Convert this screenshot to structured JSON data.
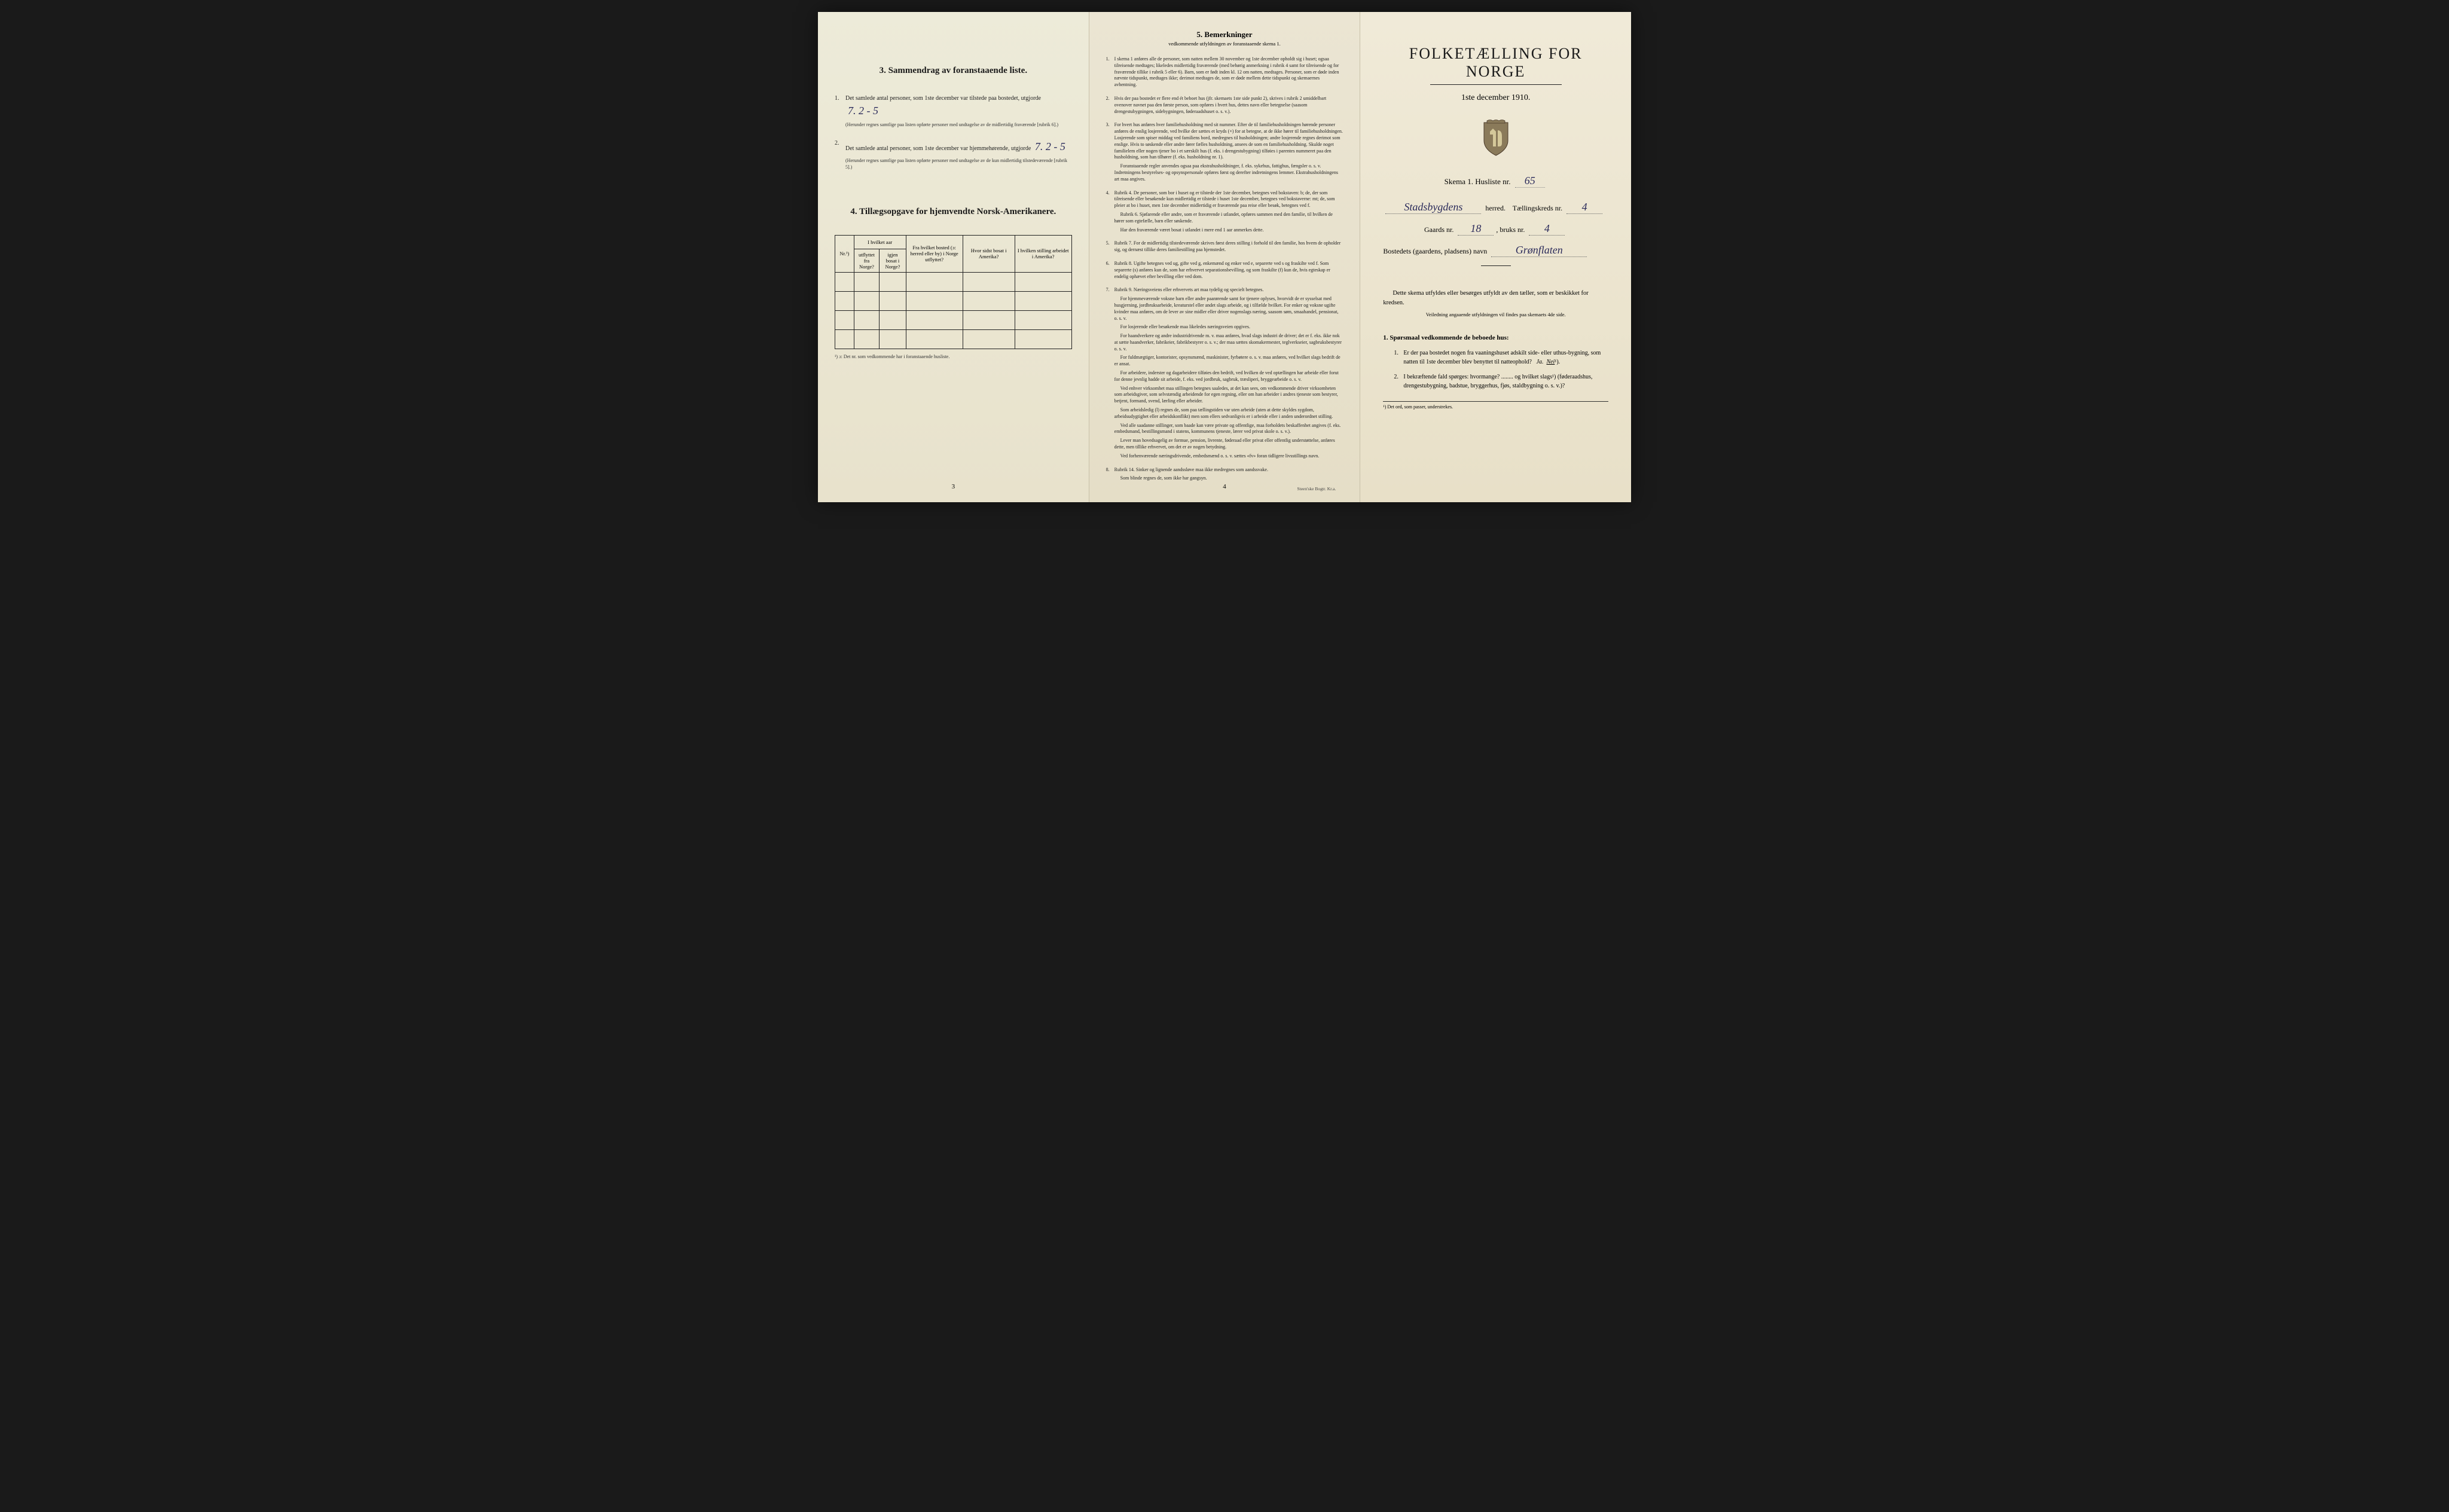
{
  "page3": {
    "section3": {
      "title": "3.  Sammendrag av foranstaaende liste.",
      "item1_num": "1.",
      "item1_text": "Det samlede antal personer, som 1ste december var tilstede paa bostedet, utgjorde",
      "item1_value": "7.  2 - 5",
      "item1_note": "(Herunder regnes samtlige paa listen opførte personer med undtagelse av de midlertidig fraværende [rubrik 6].)",
      "item2_num": "2.",
      "item2_text": "Det samlede antal personer, som 1ste december var hjemmehørende, utgjorde",
      "item2_value": "7.  2 - 5",
      "item2_note": "(Herunder regnes samtlige paa listen opførte personer med undtagelse av de kun midlertidig tilstedeværende [rubrik 5].)"
    },
    "section4": {
      "title": "4.  Tillægsopgave for hjemvendte Norsk-Amerikanere.",
      "col1": "Nr.¹)",
      "col2a": "I hvilket aar",
      "col2b_a": "utflyttet fra Norge?",
      "col2b_b": "igjen bosat i Norge?",
      "col3": "Fra hvilket bosted (ɔ: herred eller by) i Norge utflyttet?",
      "col4": "Hvor sidst bosat i Amerika?",
      "col5": "I hvilken stilling arbeidet i Amerika?",
      "footnote": "¹) ɔ: Det nr. som vedkommende har i foranstaaende husliste."
    },
    "pagenum": "3"
  },
  "page4": {
    "title": "5.  Bemerkninger",
    "subtitle": "vedkommende utfyldningen av foranstaaende skema 1.",
    "remarks": [
      {
        "n": "1.",
        "paras": [
          "I skema 1 anføres alle de personer, som natten mellem 30 november og 1ste december opholdt sig i huset; ogsaa tilreisende medtages; likeledes midlertidig fraværende (med behørig anmerkning i rubrik 4 samt for tilreisende og for fraværende tillike i rubrik 5 eller 6). Barn, som er født inden kl. 12 om natten, medtages. Personer, som er døde inden nævnte tidspunkt, medtages ikke; derimot medtages de, som er døde mellem dette tidspunkt og skemaernes avhentning."
        ]
      },
      {
        "n": "2.",
        "paras": [
          "Hvis der paa bostedet er flere end ét beboet hus (jfr. skemaets 1ste side punkt 2), skrives i rubrik 2 umiddelbart ovenover navnet paa den første person, som opføres i hvert hus, dettes navn eller betegnelse (saasom drengestubygningen, sidebygningen, føderaadshuset o. s. v.)."
        ]
      },
      {
        "n": "3.",
        "paras": [
          "For hvert hus anføres hver familiehusholdning med sit nummer. Efter de til familiehusholdningen hørende personer anføres de enslig losjerende, ved hvilke der sættes et kryds (×) for at betegne, at de ikke hører til familiehusholdningen. Losjerende som spiser middag ved familiens bord, medregnes til husholdningen; andre losjerende regnes derimot som enslige. Hvis to søskende eller andre fører fælles husholdning, ansees de som en familiehusholdning. Skulde noget familielem eller nogen tjener bo i et særskilt hus (f. eks. i drengestubygning) tilføies i parentes nummeret paa den husholdning, som han tilhører (f. eks. husholdning nr. 1).",
          "Foranstaaende regler anvendes ogsaa paa ekstrahusholdninger, f. eks. sykehus, fattighus, fængsler o. s. v. Indretningens bestyrelses- og opsynspersonale opføres først og derefter indretningens lemmer. Ekstrahusholdningens art maa angives."
        ]
      },
      {
        "n": "4.",
        "paras": [
          "Rubrik 4. De personer, som bor i huset og er tilstede der 1ste december, betegnes ved bokstaven: b; de, der som tilreisende eller besøkende kun midlertidig er tilstede i huset 1ste december, betegnes ved bokstaverne: mt; de, som pleier at bo i huset, men 1ste december midlertidig er fraværende paa reise eller besøk, betegnes ved f.",
          "Rubrik 6. Sjøfarende eller andre, som er fraværende i utlandet, opføres sammen med den familie, til hvilken de hører som egtefælle, barn eller søskende.",
          "Har den fraværende været bosat i utlandet i mere end 1 aar anmerkes dette."
        ]
      },
      {
        "n": "5.",
        "paras": [
          "Rubrik 7. For de midlertidig tilstedeværende skrives først deres stilling i forhold til den familie, hos hvem de opholder sig, og dernæst tillike deres familiestilling paa hjemstedet."
        ]
      },
      {
        "n": "6.",
        "paras": [
          "Rubrik 8. Ugifte betegnes ved ug, gifte ved g, enkemænd og enker ved e, separerte ved s og fraskilte ved f. Som separerte (s) anføres kun de, som har erhvervet separationsbevilling, og som fraskilte (f) kun de, hvis egteskap er endelig ophævet efter bevilling eller ved dom."
        ]
      },
      {
        "n": "7.",
        "paras": [
          "Rubrik 9. Næringsveiens eller erhvervets art maa tydelig og specielt betegnes.",
          "For hjemmeværende voksne barn eller andre paarørende samt for tjenere oplyses, hvorvidt de er sysselsat med husgjerning, jordbruksarbeide, kreaturstel eller andet slags arbeide, og i tilfælde hvilket. For enker og voksne ugifte kvinder maa anføres, om de lever av sine midler eller driver nogenslags næring, saasom søm, smaahandel, pensionat, o. s. v.",
          "For losjerende eller besøkende maa likeledes næringsveien opgives.",
          "For haandverkere og andre industridrivende m. v. maa anføres, hvad slags industri de driver; det er f. eks. ikke nok at sætte haandverker, fabrikeier, fabrikbestyrer o. s. v.; der maa sættes skomakermester, teglverkseier, sagbruksbestyrer o. s. v.",
          "For fuldmægtiger, kontorister, opsynsmænd, maskinister, fyrbøtere o. s. v. maa anføres, ved hvilket slags bedrift de er ansat.",
          "For arbeidere, inderster og dagarbeidere tilføies den bedrift, ved hvilken de ved optællingen har arbeide eller forut for denne jevnlig hadde sit arbeide, f. eks. ved jordbruk, sagbruk, træsliperi, bryggearbeide o. s. v.",
          "Ved enhver virksomhet maa stillingen betegnes saaledes, at det kan sees, om vedkommende driver virksomheten som arbeidsgiver, som selvstændig arbeidende for egen regning, eller om han arbeider i andres tjeneste som bestyrer, betjent, formand, svend, lærling eller arbeider.",
          "Som arbeidsledig (l) regnes de, som paa tællingstiden var uten arbeide (uten at dette skyldes sygdom, arbeidsudygtighet eller arbeidskonflikt) men som ellers sedvanligvis er i arbeide eller i anden underordnet stilling.",
          "Ved alle saadanne stillinger, som baade kan være private og offentlige, maa forholdets beskaffenhet angives (f. eks. embedsmand, bestillingsmand i statens, kommunens tjeneste, lærer ved privat skole o. s. v.).",
          "Lever man hovedsagelig av formue, pension, livrente, føderaad eller privat eller offentlig understøttelse, anføres dette, men tillike erhvervet, om det er av nogen betydning.",
          "Ved forhenværende næringsdrivende, embedsmænd o. s. v. sættes «fv» foran tidligere livsstillings navn."
        ]
      },
      {
        "n": "8.",
        "paras": [
          "Rubrik 14. Sinker og lignende aandssløve maa ikke medregnes som aandssvake.",
          "Som blinde regnes de, som ikke har gangsyn."
        ]
      }
    ],
    "pagenum": "4",
    "printer": "Steen'ske Bogtr. Kr.a."
  },
  "page1": {
    "main_title": "FOLKETÆLLING FOR NORGE",
    "date": "1ste december 1910.",
    "skema_label": "Skema 1.  Husliste nr.",
    "skema_value": "65",
    "herred_value": "Stadsbygdens",
    "herred_label": "herred.",
    "kreds_label": "Tællingskreds nr.",
    "kreds_value": "4",
    "gaards_label": "Gaards nr.",
    "gaards_value": "18",
    "bruks_label": "bruks nr.",
    "bruks_value": "4",
    "bosted_label": "Bostedets (gaardens, pladsens) navn",
    "bosted_value": "Grønflaten",
    "instruction": "Dette skema utfyldes eller besørges utfyldt av den tæller, som er beskikket for kredsen.",
    "instruction_sub": "Veiledning angaaende utfyldningen vil findes paa skemaets 4de side.",
    "q_header": "1. Spørsmaal vedkommende de beboede hus:",
    "q1_num": "1.",
    "q1_text": "Er der paa bostedet nogen fra vaaningshuset adskilt side- eller uthus-bygning, som natten til 1ste december blev benyttet til natteophold?",
    "q1_ja": "Ja.",
    "q1_nei": "Nei",
    "q1_sup": "¹).",
    "q2_num": "2.",
    "q2_text": "I bekræftende fald spørges: hvormange? ........ og hvilket slags¹) (føderaadshus, drengestubygning, badstue, bryggerhus, fjøs, staldbygning o. s. v.)?",
    "footnote": "¹) Det ord, som passer, understrekes."
  }
}
